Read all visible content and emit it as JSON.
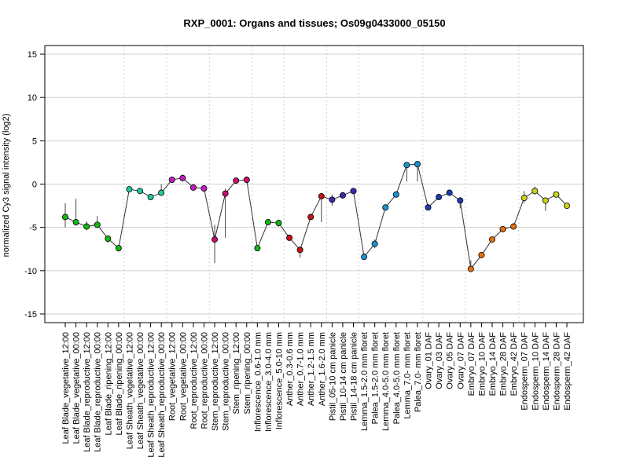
{
  "chart_data": {
    "type": "line",
    "title": "RXP_0001: Organs and tissues; Os09g0433000_05150",
    "ylabel": "normalized Cy3 signal intensity (log2)",
    "xlabel": "",
    "ylim": [
      -16,
      16
    ],
    "yticks": [
      -15,
      -10,
      -5,
      0,
      5,
      10,
      15
    ],
    "grid": true,
    "categories": [
      "Leaf Blade_vegetative_12:00",
      "Leaf Blade_vegetative_00:00",
      "Leaf Blade_reproductive_12:00",
      "Leaf Blade_reproductive_00:00",
      "Leaf Blade_ripening_12:00",
      "Leaf Blade_ripening_00:00",
      "Leaf Sheath_vegetative_12:00",
      "Leaf Sheath_vegetative_00:00",
      "Leaf Sheath_reproductive_12:00",
      "Leaf Sheath_reproductive_00:00",
      "Root_vegetative_12:00",
      "Root_vegetative_00:00",
      "Root_reproductive_12:00",
      "Root_reproductive_00:00",
      "Stem_reproductive_12:00",
      "Stem_reproductive_00:00",
      "Stem_ripening_12:00",
      "Stem_ripening_00:00",
      "Inflorescence_0.6-1.0 mm",
      "Inflorescence_3.0-4.0 mm",
      "Inflorescence_5.0-10 mm",
      "Anther_0.3-0.6 mm",
      "Anther_0.7-1.0 mm",
      "Anther_1.2-1.5 mm",
      "Anther_1.6-2.0 mm",
      "Pistil_05-10 cm panicle",
      "Pistil_10-14 cm panicle",
      "Pistil_14-18 cm panicle",
      "Lemma_1.5-2.0 mm floret",
      "Palea_1.5-2.0 mm floret",
      "Lemma_4.0-5.0 mm floret",
      "Palea_4.0-5.0 mm floret",
      "Lemma_7.0- mm floret",
      "Palea_7.0- mm floret",
      "Ovary_01 DAF",
      "Ovary_03 DAF",
      "Ovary_05 DAF",
      "Ovary_07 DAF",
      "Embryo_07 DAF",
      "Embryo_10 DAF",
      "Embryo_14 DAF",
      "Embryo_28 DAF",
      "Embryo_42 DAF",
      "Endosperm_07 DAF",
      "Endosperm_10 DAF",
      "Endosperm_14 DAF",
      "Endosperm_28 DAF",
      "Endosperm_42 DAF"
    ],
    "series": [
      {
        "values": [
          -3.8,
          -4.4,
          -4.9,
          -4.7,
          -6.3,
          -7.4,
          -0.6,
          -0.8,
          -1.5,
          -1.0,
          0.5,
          0.7,
          -0.4,
          -0.5,
          -6.4,
          -1.1,
          0.4,
          0.5,
          -7.4,
          -4.4,
          -4.5,
          -6.2,
          -7.6,
          -3.8,
          -1.4,
          -1.8,
          -1.3,
          -0.8,
          -8.4,
          -6.9,
          -2.7,
          -1.2,
          2.2,
          2.3,
          -2.7,
          -1.5,
          -1.0,
          -1.9,
          -9.8,
          -8.2,
          -6.4,
          -5.2,
          -4.9,
          -1.6,
          -0.8,
          -1.9,
          -1.2,
          -2.5
        ],
        "error_low": [
          -5.0,
          -4.8,
          -5.3,
          -5.1,
          -6.8,
          -7.8,
          -0.8,
          -1.0,
          -1.8,
          -1.2,
          0.3,
          0.3,
          -0.6,
          -0.7,
          -9.1,
          -6.2,
          0.2,
          0.1,
          -7.6,
          -4.6,
          -4.9,
          -6.4,
          -8.5,
          -4.0,
          -4.4,
          -2.5,
          -1.7,
          -1.0,
          -8.6,
          -7.4,
          -2.9,
          -1.5,
          0.3,
          0.3,
          -3.0,
          -1.7,
          -1.2,
          -2.8,
          -10.0,
          -8.5,
          -6.7,
          -5.4,
          -5.1,
          -2.2,
          -1.2,
          -3.1,
          -1.5,
          -2.7
        ],
        "error_high": [
          -2.2,
          -1.7,
          -4.3,
          -3.7,
          -6.0,
          -7.0,
          -0.4,
          -0.5,
          -1.2,
          0.0,
          0.7,
          1.1,
          -0.2,
          -0.3,
          -4.7,
          -0.5,
          0.6,
          0.9,
          -7.2,
          -4.2,
          -4.1,
          -6.0,
          -7.2,
          -3.6,
          -1.2,
          -1.2,
          -0.9,
          -0.6,
          -8.2,
          -6.4,
          -2.5,
          -0.9,
          2.5,
          2.6,
          -2.4,
          -1.3,
          -0.8,
          -1.5,
          -8.8,
          -7.9,
          -6.1,
          -5.0,
          -4.7,
          -0.8,
          -0.3,
          -1.7,
          -0.9,
          -2.3
        ],
        "colors": [
          "#13b913",
          "#13b913",
          "#13b913",
          "#13b913",
          "#13b913",
          "#13b913",
          "#20c9a0",
          "#20c9a0",
          "#20c9a0",
          "#20c9a0",
          "#c21ec2",
          "#c21ec2",
          "#c21ec2",
          "#c21ec2",
          "#c8106e",
          "#c8106e",
          "#c8106e",
          "#c8106e",
          "#13b913",
          "#13b913",
          "#13b913",
          "#c81414",
          "#c81414",
          "#c81414",
          "#c81414",
          "#3a2ab6",
          "#3a2ab6",
          "#3a2ab6",
          "#1a93d1",
          "#1a93d1",
          "#1a93d1",
          "#1a93d1",
          "#1a93d1",
          "#1a93d1",
          "#1d3ab8",
          "#1d3ab8",
          "#1d3ab8",
          "#1d3ab8",
          "#e56f0c",
          "#e56f0c",
          "#e56f0c",
          "#e56f0c",
          "#e56f0c",
          "#c9d21a",
          "#c9d21a",
          "#c9d21a",
          "#c9d21a",
          "#c9d21a"
        ]
      }
    ]
  }
}
